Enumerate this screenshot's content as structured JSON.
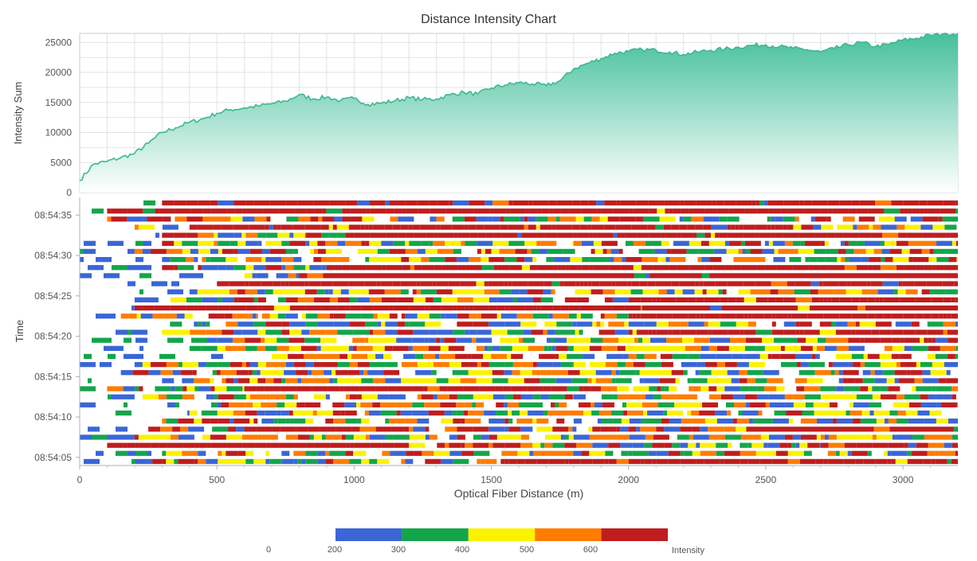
{
  "chart_title": "Distance Intensity Chart",
  "chart_data": [
    {
      "type": "area",
      "name": "intensity-sum",
      "ylabel": "Intensity Sum",
      "xlim": [
        0,
        3200
      ],
      "ylim": [
        0,
        26500
      ],
      "y_ticks": [
        0,
        5000,
        10000,
        15000,
        20000,
        25000
      ],
      "grid": true,
      "colors": {
        "line": "#3cb890",
        "fill_top": "#45c09a",
        "fill_bottom": "#ffffff"
      },
      "x": [
        0,
        50,
        100,
        150,
        200,
        250,
        300,
        350,
        400,
        450,
        500,
        550,
        600,
        650,
        700,
        750,
        800,
        850,
        900,
        950,
        1000,
        1050,
        1100,
        1150,
        1200,
        1250,
        1300,
        1350,
        1400,
        1450,
        1500,
        1550,
        1600,
        1650,
        1700,
        1750,
        1800,
        1850,
        1900,
        1950,
        2000,
        2050,
        2100,
        2150,
        2200,
        2250,
        2300,
        2350,
        2400,
        2450,
        2500,
        2550,
        2600,
        2650,
        2700,
        2750,
        2800,
        2850,
        2900,
        2950,
        3000,
        3050,
        3100,
        3150,
        3200
      ],
      "y": [
        2000,
        4700,
        5200,
        5800,
        6500,
        8200,
        10000,
        10800,
        11700,
        12300,
        13200,
        13800,
        14100,
        14400,
        14800,
        15200,
        16300,
        15600,
        15900,
        15300,
        15700,
        14700,
        14900,
        15300,
        15800,
        15500,
        15600,
        16300,
        16700,
        16400,
        17400,
        17900,
        18300,
        18100,
        17800,
        18600,
        20600,
        21500,
        22300,
        23200,
        23500,
        23800,
        23700,
        23400,
        23000,
        23400,
        23700,
        23900,
        24200,
        24500,
        24600,
        24300,
        24000,
        23800,
        23400,
        24000,
        24600,
        25000,
        24300,
        24700,
        25400,
        25700,
        26200,
        26500,
        26500
      ]
    },
    {
      "type": "heatmap",
      "name": "time-distance-intensity",
      "xlabel": "Optical Fiber Distance (m)",
      "ylabel": "Time",
      "xlim": [
        0,
        3200
      ],
      "x_ticks": [
        0,
        500,
        1000,
        1500,
        2000,
        2500,
        3000
      ],
      "time_ticks": [
        "08:54:05",
        "08:54:10",
        "08:54:15",
        "08:54:20",
        "08:54:25",
        "08:54:30",
        "08:54:35"
      ],
      "time_start": "08:54:04",
      "time_end": "08:54:37",
      "row_count": 33,
      "value_range": [
        0,
        700
      ],
      "rows_low_to_high_time": [
        {
          "ranges": [
            [
              0,
              250,
              "sparse"
            ],
            [
              250,
              300,
              "mixed"
            ],
            [
              300,
              1550,
              "mixed"
            ],
            [
              1550,
              3200,
              "high"
            ]
          ]
        },
        {
          "ranges": [
            [
              0,
              300,
              "sparse"
            ],
            [
              300,
              1000,
              "mixed"
            ],
            [
              1000,
              2000,
              "mixed"
            ],
            [
              2000,
              3200,
              "mixed"
            ]
          ]
        },
        {
          "ranges": [
            [
              0,
              100,
              "sparse"
            ],
            [
              100,
              1200,
              "high"
            ],
            [
              1200,
              2700,
              "mixed"
            ],
            [
              2700,
              3200,
              "high"
            ]
          ]
        },
        {
          "ranges": [
            [
              0,
              200,
              "sparse"
            ],
            [
              200,
              1800,
              "mixed"
            ],
            [
              1800,
              3200,
              "mixed"
            ]
          ]
        },
        {
          "ranges": [
            [
              0,
              250,
              "sparse"
            ],
            [
              250,
              600,
              "mixed"
            ],
            [
              600,
              1200,
              "high"
            ],
            [
              1200,
              2400,
              "mixed"
            ],
            [
              2400,
              3200,
              "high"
            ]
          ]
        },
        {
          "ranges": [
            [
              0,
              300,
              "sparse"
            ],
            [
              300,
              1800,
              "mixed"
            ],
            [
              1800,
              3200,
              "mixed"
            ]
          ]
        },
        {
          "ranges": [
            [
              0,
              400,
              "sparse"
            ],
            [
              400,
              1400,
              "mixed"
            ],
            [
              1400,
              2400,
              "mixed"
            ],
            [
              2400,
              3200,
              "mixed"
            ]
          ]
        },
        {
          "ranges": [
            [
              0,
              500,
              "sparse"
            ],
            [
              500,
              1600,
              "mixed"
            ],
            [
              1600,
              2500,
              "mixed"
            ],
            [
              2500,
              3200,
              "mixed"
            ]
          ]
        },
        {
          "ranges": [
            [
              0,
              200,
              "sparse"
            ],
            [
              200,
              1800,
              "mixed"
            ],
            [
              1800,
              3200,
              "mixed"
            ]
          ]
        },
        {
          "ranges": [
            [
              0,
              100,
              "sparse"
            ],
            [
              100,
              600,
              "mixed"
            ],
            [
              600,
              1900,
              "high"
            ],
            [
              1900,
              3200,
              "mixed"
            ]
          ]
        },
        {
          "ranges": [
            [
              0,
              300,
              "sparse"
            ],
            [
              300,
              1300,
              "mixed"
            ],
            [
              1300,
              3200,
              "mixed"
            ]
          ]
        },
        {
          "ranges": [
            [
              0,
              150,
              "sparse"
            ],
            [
              150,
              700,
              "mixed"
            ],
            [
              700,
              1300,
              "mixed"
            ],
            [
              1300,
              3200,
              "mixed"
            ]
          ]
        },
        {
          "ranges": [
            [
              0,
              200,
              "sparse"
            ],
            [
              200,
              1800,
              "mixed"
            ],
            [
              1800,
              3200,
              "mixed"
            ]
          ]
        },
        {
          "ranges": [
            [
              0,
              700,
              "sparse"
            ],
            [
              700,
              2000,
              "mixed"
            ],
            [
              2000,
              3200,
              "mixed"
            ]
          ]
        },
        {
          "ranges": [
            [
              0,
              400,
              "sparse"
            ],
            [
              400,
              1800,
              "mixed"
            ],
            [
              1800,
              3200,
              "mixed"
            ]
          ]
        },
        {
          "ranges": [
            [
              0,
              500,
              "sparse"
            ],
            [
              500,
              1600,
              "mixed"
            ],
            [
              1600,
              2800,
              "mixed"
            ],
            [
              2800,
              3200,
              "high"
            ]
          ]
        },
        {
          "ranges": [
            [
              0,
              300,
              "sparse"
            ],
            [
              300,
              1500,
              "mixed"
            ],
            [
              1500,
              2000,
              "mixed"
            ],
            [
              2000,
              3200,
              "high"
            ]
          ]
        },
        {
          "ranges": [
            [
              0,
              300,
              "sparse"
            ],
            [
              300,
              2000,
              "mixed"
            ],
            [
              2000,
              3200,
              "mixed"
            ]
          ]
        },
        {
          "ranges": [
            [
              0,
              150,
              "sparse"
            ],
            [
              150,
              650,
              "mixed"
            ],
            [
              650,
              2000,
              "mixed"
            ],
            [
              2000,
              3200,
              "high"
            ]
          ]
        },
        {
          "ranges": [
            [
              0,
              200,
              "sparse"
            ],
            [
              200,
              2050,
              "high"
            ],
            [
              2050,
              3200,
              "high"
            ]
          ]
        },
        {
          "ranges": [
            [
              0,
              200,
              "sparse"
            ],
            [
              200,
              2000,
              "mixed"
            ],
            [
              2000,
              3200,
              "high"
            ]
          ]
        },
        {
          "ranges": [
            [
              0,
              400,
              "sparse"
            ],
            [
              400,
              1500,
              "mixed"
            ],
            [
              1500,
              3200,
              "mixed"
            ]
          ]
        },
        {
          "ranges": [
            [
              0,
              500,
              "sparse"
            ],
            [
              500,
              1300,
              "high"
            ],
            [
              1300,
              3200,
              "high"
            ]
          ]
        },
        {
          "ranges": [
            [
              0,
              600,
              "sparse"
            ],
            [
              600,
              800,
              "mixed"
            ],
            [
              800,
              3200,
              "high"
            ]
          ]
        },
        {
          "ranges": [
            [
              0,
              300,
              "sparse"
            ],
            [
              300,
              900,
              "mixed"
            ],
            [
              900,
              3200,
              "high"
            ]
          ]
        },
        {
          "ranges": [
            [
              0,
              300,
              "sparse"
            ],
            [
              300,
              1700,
              "mixed"
            ],
            [
              1700,
              3200,
              "mixed"
            ]
          ]
        },
        {
          "ranges": [
            [
              0,
              200,
              "sparse"
            ],
            [
              200,
              1500,
              "mixed"
            ],
            [
              1500,
              3200,
              "mixed"
            ]
          ]
        },
        {
          "ranges": [
            [
              0,
              300,
              "sparse"
            ],
            [
              300,
              1800,
              "mixed"
            ],
            [
              1800,
              3200,
              "mixed"
            ]
          ]
        },
        {
          "ranges": [
            [
              0,
              300,
              "sparse"
            ],
            [
              300,
              1000,
              "mixed"
            ],
            [
              1000,
              2300,
              "high"
            ],
            [
              2300,
              3200,
              "high"
            ]
          ]
        },
        {
          "ranges": [
            [
              0,
              200,
              "sparse"
            ],
            [
              200,
              400,
              "mixed"
            ],
            [
              400,
              2600,
              "high"
            ],
            [
              2600,
              3200,
              "mixed"
            ]
          ]
        },
        {
          "ranges": [
            [
              0,
              100,
              "sparse"
            ],
            [
              100,
              1300,
              "mixed"
            ],
            [
              1300,
              3200,
              "mixed"
            ]
          ]
        },
        {
          "ranges": [
            [
              0,
              100,
              "sparse"
            ],
            [
              100,
              3200,
              "high"
            ]
          ]
        },
        {
          "ranges": [
            [
              0,
              300,
              "sparse"
            ],
            [
              300,
              3200,
              "high"
            ]
          ]
        }
      ]
    }
  ],
  "legend": {
    "title": "Intensity",
    "labels": [
      "0",
      "200",
      "300",
      "400",
      "500",
      "600"
    ],
    "bins": [
      {
        "from": 200,
        "to": 300,
        "color": "#3a66d6"
      },
      {
        "from": 300,
        "to": 400,
        "color": "#13a54a"
      },
      {
        "from": 400,
        "to": 500,
        "color": "#fbf200"
      },
      {
        "from": 500,
        "to": 600,
        "color": "#fe7c00"
      },
      {
        "from": 600,
        "to": 700,
        "color": "#bf1d1d"
      }
    ]
  }
}
